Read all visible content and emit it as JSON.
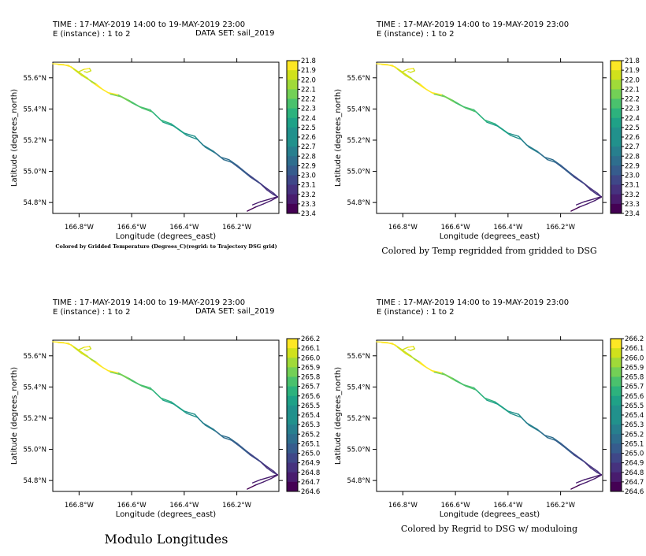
{
  "chart_data": [
    {
      "type": "line",
      "header": {
        "time": "TIME : 17-MAY-2019 14:00 to 19-MAY-2019 23:00",
        "instance": "E (instance) : 1 to 2",
        "dataset": "DATA SET: sail_2019"
      },
      "xlabel": "Longitude (degrees_east)",
      "ylabel": "Latitude (degrees_north)",
      "xlim": [
        -166.9,
        -166.04
      ],
      "ylim": [
        54.73,
        55.7
      ],
      "x_ticks": [
        {
          "value": -166.8,
          "label": "166.8°W"
        },
        {
          "value": -166.6,
          "label": "166.6°W"
        },
        {
          "value": -166.4,
          "label": "166.4°W"
        },
        {
          "value": -166.2,
          "label": "166.2°W"
        }
      ],
      "y_ticks": [
        {
          "value": 54.8,
          "label": "54.8°N"
        },
        {
          "value": 55.0,
          "label": "55.0°N"
        },
        {
          "value": 55.2,
          "label": "55.2°N"
        },
        {
          "value": 55.4,
          "label": "55.4°N"
        },
        {
          "value": 55.6,
          "label": "55.6°N"
        }
      ],
      "colorbar_labels": [
        "21.8",
        "21.9",
        "22.0",
        "22.1",
        "22.2",
        "22.3",
        "22.4",
        "22.5",
        "22.6",
        "22.7",
        "22.8",
        "22.9",
        "23.0",
        "23.1",
        "23.2",
        "23.3",
        "23.4"
      ],
      "caption": "Colored by Gridded Temperature (Degrees_C)(regrid: to Trajectory DSG grid)",
      "caption_style": "small"
    },
    {
      "type": "line",
      "header": {
        "time": "TIME : 17-MAY-2019 14:00 to 19-MAY-2019 23:00",
        "instance": "E (instance) : 1 to 2",
        "dataset": ""
      },
      "xlabel": "Longitude (degrees_east)",
      "ylabel": "Latitude (degrees_north)",
      "xlim": [
        -166.9,
        -166.04
      ],
      "ylim": [
        54.73,
        55.7
      ],
      "x_ticks": [
        {
          "value": -166.8,
          "label": "166.8°W"
        },
        {
          "value": -166.6,
          "label": "166.6°W"
        },
        {
          "value": -166.4,
          "label": "166.4°W"
        },
        {
          "value": -166.2,
          "label": "166.2°W"
        }
      ],
      "y_ticks": [
        {
          "value": 54.8,
          "label": "54.8°N"
        },
        {
          "value": 55.0,
          "label": "55.0°N"
        },
        {
          "value": 55.2,
          "label": "55.2°N"
        },
        {
          "value": 55.4,
          "label": "55.4°N"
        },
        {
          "value": 55.6,
          "label": "55.6°N"
        }
      ],
      "colorbar_labels": [
        "21.8",
        "21.9",
        "22.0",
        "22.1",
        "22.2",
        "22.3",
        "22.4",
        "22.5",
        "22.6",
        "22.7",
        "22.8",
        "22.9",
        "23.0",
        "23.1",
        "23.2",
        "23.3",
        "23.4"
      ],
      "caption": "Colored by Temp regridded from gridded to DSG",
      "caption_style": "medium"
    },
    {
      "type": "line",
      "header": {
        "time": "TIME : 17-MAY-2019 14:00 to 19-MAY-2019 23:00",
        "instance": "E (instance) : 1 to 2",
        "dataset": "DATA SET: sail_2019"
      },
      "xlabel": "Longitude (degrees_east)",
      "ylabel": "Latitude (degrees_north)",
      "xlim": [
        -166.9,
        -166.04
      ],
      "ylim": [
        54.73,
        55.7
      ],
      "x_ticks": [
        {
          "value": -166.8,
          "label": "166.8°W"
        },
        {
          "value": -166.6,
          "label": "166.6°W"
        },
        {
          "value": -166.4,
          "label": "166.4°W"
        },
        {
          "value": -166.2,
          "label": "166.2°W"
        }
      ],
      "y_ticks": [
        {
          "value": 54.8,
          "label": "54.8°N"
        },
        {
          "value": 55.0,
          "label": "55.0°N"
        },
        {
          "value": 55.2,
          "label": "55.2°N"
        },
        {
          "value": 55.4,
          "label": "55.4°N"
        },
        {
          "value": 55.6,
          "label": "55.6°N"
        }
      ],
      "colorbar_labels": [
        "266.2",
        "266.1",
        "266.0",
        "265.9",
        "265.8",
        "265.7",
        "265.6",
        "265.5",
        "265.4",
        "265.3",
        "265.2",
        "265.1",
        "265.0",
        "264.9",
        "264.8",
        "264.7",
        "264.6"
      ],
      "caption": "Modulo Longitudes",
      "caption_style": "large"
    },
    {
      "type": "line",
      "header": {
        "time": "TIME : 17-MAY-2019 14:00 to 19-MAY-2019 23:00",
        "instance": "E (instance) : 1 to 2",
        "dataset": ""
      },
      "xlabel": "Longitude (degrees_east)",
      "ylabel": "Latitude (degrees_north)",
      "xlim": [
        -166.9,
        -166.04
      ],
      "ylim": [
        54.73,
        55.7
      ],
      "x_ticks": [
        {
          "value": -166.8,
          "label": "166.8°W"
        },
        {
          "value": -166.6,
          "label": "166.6°W"
        },
        {
          "value": -166.4,
          "label": "166.4°W"
        },
        {
          "value": -166.2,
          "label": "166.2°W"
        }
      ],
      "y_ticks": [
        {
          "value": 54.8,
          "label": "54.8°N"
        },
        {
          "value": 55.0,
          "label": "55.0°N"
        },
        {
          "value": 55.2,
          "label": "55.2°N"
        },
        {
          "value": 55.4,
          "label": "55.4°N"
        },
        {
          "value": 55.6,
          "label": "55.6°N"
        }
      ],
      "colorbar_labels": [
        "266.2",
        "266.1",
        "266.0",
        "265.9",
        "265.8",
        "265.7",
        "265.6",
        "265.5",
        "265.4",
        "265.3",
        "265.2",
        "265.1",
        "265.0",
        "264.9",
        "264.8",
        "264.7",
        "264.6"
      ],
      "caption": "Colored by Regrid to DSG w/ moduloing",
      "caption_style": "medium"
    }
  ],
  "tracks": [
    {
      "name": "",
      "points": [
        [
          -166.9,
          55.69
        ],
        [
          -166.86,
          55.685
        ],
        [
          -166.83,
          55.67
        ],
        [
          -166.8,
          55.635
        ],
        [
          -166.77,
          55.6
        ],
        [
          -166.75,
          55.57
        ],
        [
          -166.72,
          55.535
        ],
        [
          -166.69,
          55.505
        ],
        [
          -166.65,
          55.49
        ],
        [
          -166.61,
          55.455
        ],
        [
          -166.57,
          55.415
        ],
        [
          -166.53,
          55.395
        ],
        [
          -166.49,
          55.33
        ],
        [
          -166.45,
          55.305
        ],
        [
          -166.4,
          55.245
        ],
        [
          -166.36,
          55.225
        ],
        [
          -166.33,
          55.17
        ],
        [
          -166.29,
          55.13
        ],
        [
          -166.26,
          55.09
        ],
        [
          -166.23,
          55.075
        ],
        [
          -166.2,
          55.04
        ],
        [
          -166.16,
          54.985
        ],
        [
          -166.12,
          54.935
        ],
        [
          -166.09,
          54.895
        ],
        [
          -166.06,
          54.86
        ],
        [
          -166.045,
          54.835
        ]
      ]
    },
    {
      "name": "",
      "points": [
        [
          -166.88,
          55.685
        ],
        [
          -166.84,
          55.68
        ],
        [
          -166.82,
          55.655
        ],
        [
          -166.79,
          55.615
        ],
        [
          -166.76,
          55.585
        ],
        [
          -166.735,
          55.56
        ],
        [
          -166.71,
          55.525
        ],
        [
          -166.68,
          55.495
        ],
        [
          -166.64,
          55.478
        ],
        [
          -166.6,
          55.44
        ],
        [
          -166.56,
          55.405
        ],
        [
          -166.52,
          55.38
        ],
        [
          -166.48,
          55.315
        ],
        [
          -166.44,
          55.29
        ],
        [
          -166.39,
          55.23
        ],
        [
          -166.35,
          55.205
        ],
        [
          -166.32,
          55.155
        ],
        [
          -166.28,
          55.115
        ],
        [
          -166.25,
          55.075
        ],
        [
          -166.22,
          55.058
        ],
        [
          -166.19,
          55.02
        ],
        [
          -166.15,
          54.965
        ],
        [
          -166.11,
          54.92
        ],
        [
          -166.085,
          54.88
        ],
        [
          -166.06,
          54.85
        ],
        [
          -166.045,
          54.838
        ]
      ]
    },
    {
      "name": "",
      "points": [
        [
          -166.8,
          55.64
        ],
        [
          -166.78,
          55.655
        ],
        [
          -166.76,
          55.66
        ],
        [
          -166.755,
          55.645
        ],
        [
          -166.77,
          55.635
        ],
        [
          -166.78,
          55.64
        ]
      ]
    },
    {
      "name": "",
      "points": [
        [
          -166.045,
          54.835
        ],
        [
          -166.07,
          54.812
        ],
        [
          -166.1,
          54.79
        ],
        [
          -166.13,
          54.77
        ],
        [
          -166.16,
          54.745
        ]
      ]
    },
    {
      "name": "",
      "points": [
        [
          -166.045,
          54.838
        ],
        [
          -166.075,
          54.822
        ],
        [
          -166.11,
          54.805
        ],
        [
          -166.14,
          54.785
        ]
      ]
    }
  ],
  "palette": [
    "#fde725",
    "#d0e11c",
    "#a0da39",
    "#73d056",
    "#4ac16d",
    "#2db27d",
    "#1fa187",
    "#21918c",
    "#277f8e",
    "#2e6e8e",
    "#365c8d",
    "#3f4788",
    "#46327e",
    "#481c6e",
    "#440154"
  ]
}
